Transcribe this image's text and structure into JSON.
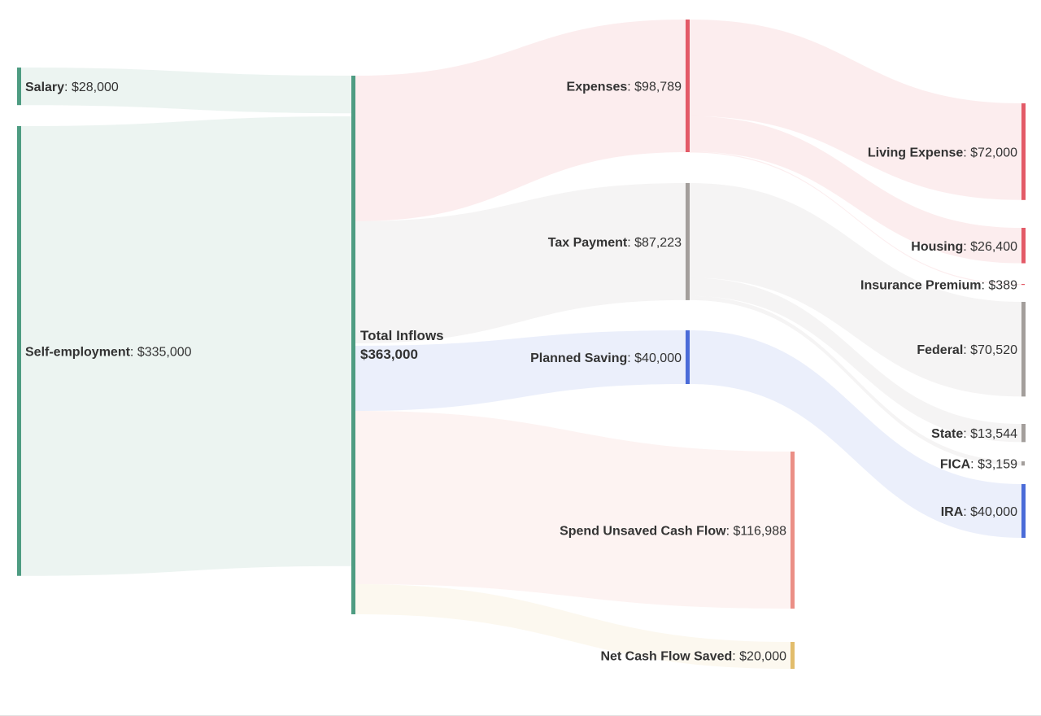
{
  "chart_data": {
    "type": "sankey",
    "title": "",
    "colors": {
      "income": "#4e9c82",
      "expenses": "#e35a67",
      "tax": "#a39e9b",
      "saving": "#4a6bd8",
      "unsaved": "#eb8f86",
      "saved": "#e2bd6c",
      "total_label": "#3a3a3a"
    },
    "nodes": [
      {
        "id": "salary",
        "name": "Salary",
        "value": 28000,
        "value_label": "$28,000",
        "color_key": "income",
        "column": 0
      },
      {
        "id": "selfemp",
        "name": "Self-employment",
        "value": 335000,
        "value_label": "$335,000",
        "color_key": "income",
        "column": 0
      },
      {
        "id": "total",
        "name": "Total Inflows",
        "value": 363000,
        "value_label": "$363,000",
        "color_key": "income",
        "column": 1
      },
      {
        "id": "expenses",
        "name": "Expenses",
        "value": 98789,
        "value_label": "$98,789",
        "color_key": "expenses",
        "column": 2
      },
      {
        "id": "tax",
        "name": "Tax Payment",
        "value": 87223,
        "value_label": "$87,223",
        "color_key": "tax",
        "column": 2
      },
      {
        "id": "saving",
        "name": "Planned Saving",
        "value": 40000,
        "value_label": "$40,000",
        "color_key": "saving",
        "column": 2
      },
      {
        "id": "unsaved",
        "name": "Spend Unsaved Cash Flow",
        "value": 116988,
        "value_label": "$116,988",
        "color_key": "unsaved",
        "column": 3
      },
      {
        "id": "netsaved",
        "name": "Net Cash Flow Saved",
        "value": 20000,
        "value_label": "$20,000",
        "color_key": "saved",
        "column": 3
      },
      {
        "id": "living",
        "name": "Living Expense",
        "value": 72000,
        "value_label": "$72,000",
        "color_key": "expenses",
        "column": 4
      },
      {
        "id": "housing",
        "name": "Housing",
        "value": 26400,
        "value_label": "$26,400",
        "color_key": "expenses",
        "column": 4
      },
      {
        "id": "insurance",
        "name": "Insurance Premium",
        "value": 389,
        "value_label": "$389",
        "color_key": "expenses",
        "column": 4
      },
      {
        "id": "federal",
        "name": "Federal",
        "value": 70520,
        "value_label": "$70,520",
        "color_key": "tax",
        "column": 4
      },
      {
        "id": "state",
        "name": "State",
        "value": 13544,
        "value_label": "$13,544",
        "color_key": "tax",
        "column": 4
      },
      {
        "id": "fica",
        "name": "FICA",
        "value": 3159,
        "value_label": "$3,159",
        "color_key": "tax",
        "column": 4
      },
      {
        "id": "ira",
        "name": "IRA",
        "value": 40000,
        "value_label": "$40,000",
        "color_key": "saving",
        "column": 4
      }
    ],
    "links": [
      {
        "source": "salary",
        "target": "total",
        "value": 28000
      },
      {
        "source": "selfemp",
        "target": "total",
        "value": 335000
      },
      {
        "source": "total",
        "target": "expenses",
        "value": 98789
      },
      {
        "source": "total",
        "target": "tax",
        "value": 87223
      },
      {
        "source": "total",
        "target": "saving",
        "value": 40000
      },
      {
        "source": "total",
        "target": "unsaved",
        "value": 116988
      },
      {
        "source": "total",
        "target": "netsaved",
        "value": 20000
      },
      {
        "source": "expenses",
        "target": "living",
        "value": 72000
      },
      {
        "source": "expenses",
        "target": "housing",
        "value": 26400
      },
      {
        "source": "expenses",
        "target": "insurance",
        "value": 389
      },
      {
        "source": "tax",
        "target": "federal",
        "value": 70520
      },
      {
        "source": "tax",
        "target": "state",
        "value": 13544
      },
      {
        "source": "tax",
        "target": "fica",
        "value": 3159
      },
      {
        "source": "saving",
        "target": "ira",
        "value": 40000
      }
    ]
  }
}
